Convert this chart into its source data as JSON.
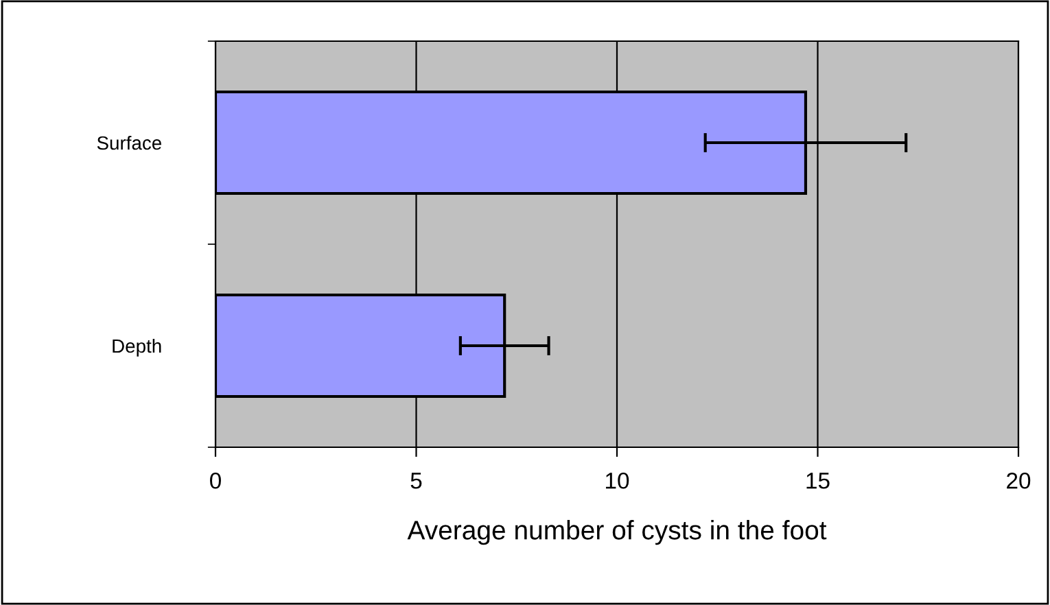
{
  "chart_data": {
    "type": "bar",
    "orientation": "horizontal",
    "categories": [
      "Surface",
      "Depth"
    ],
    "values": [
      14.7,
      7.2
    ],
    "errors": [
      2.5,
      1.1
    ],
    "color": "#9999ff",
    "xlabel": "Average number of cysts in the foot",
    "xlim": [
      0,
      20
    ],
    "xticks": [
      0,
      5,
      10,
      15,
      20
    ],
    "grid": "x",
    "legend": false
  }
}
